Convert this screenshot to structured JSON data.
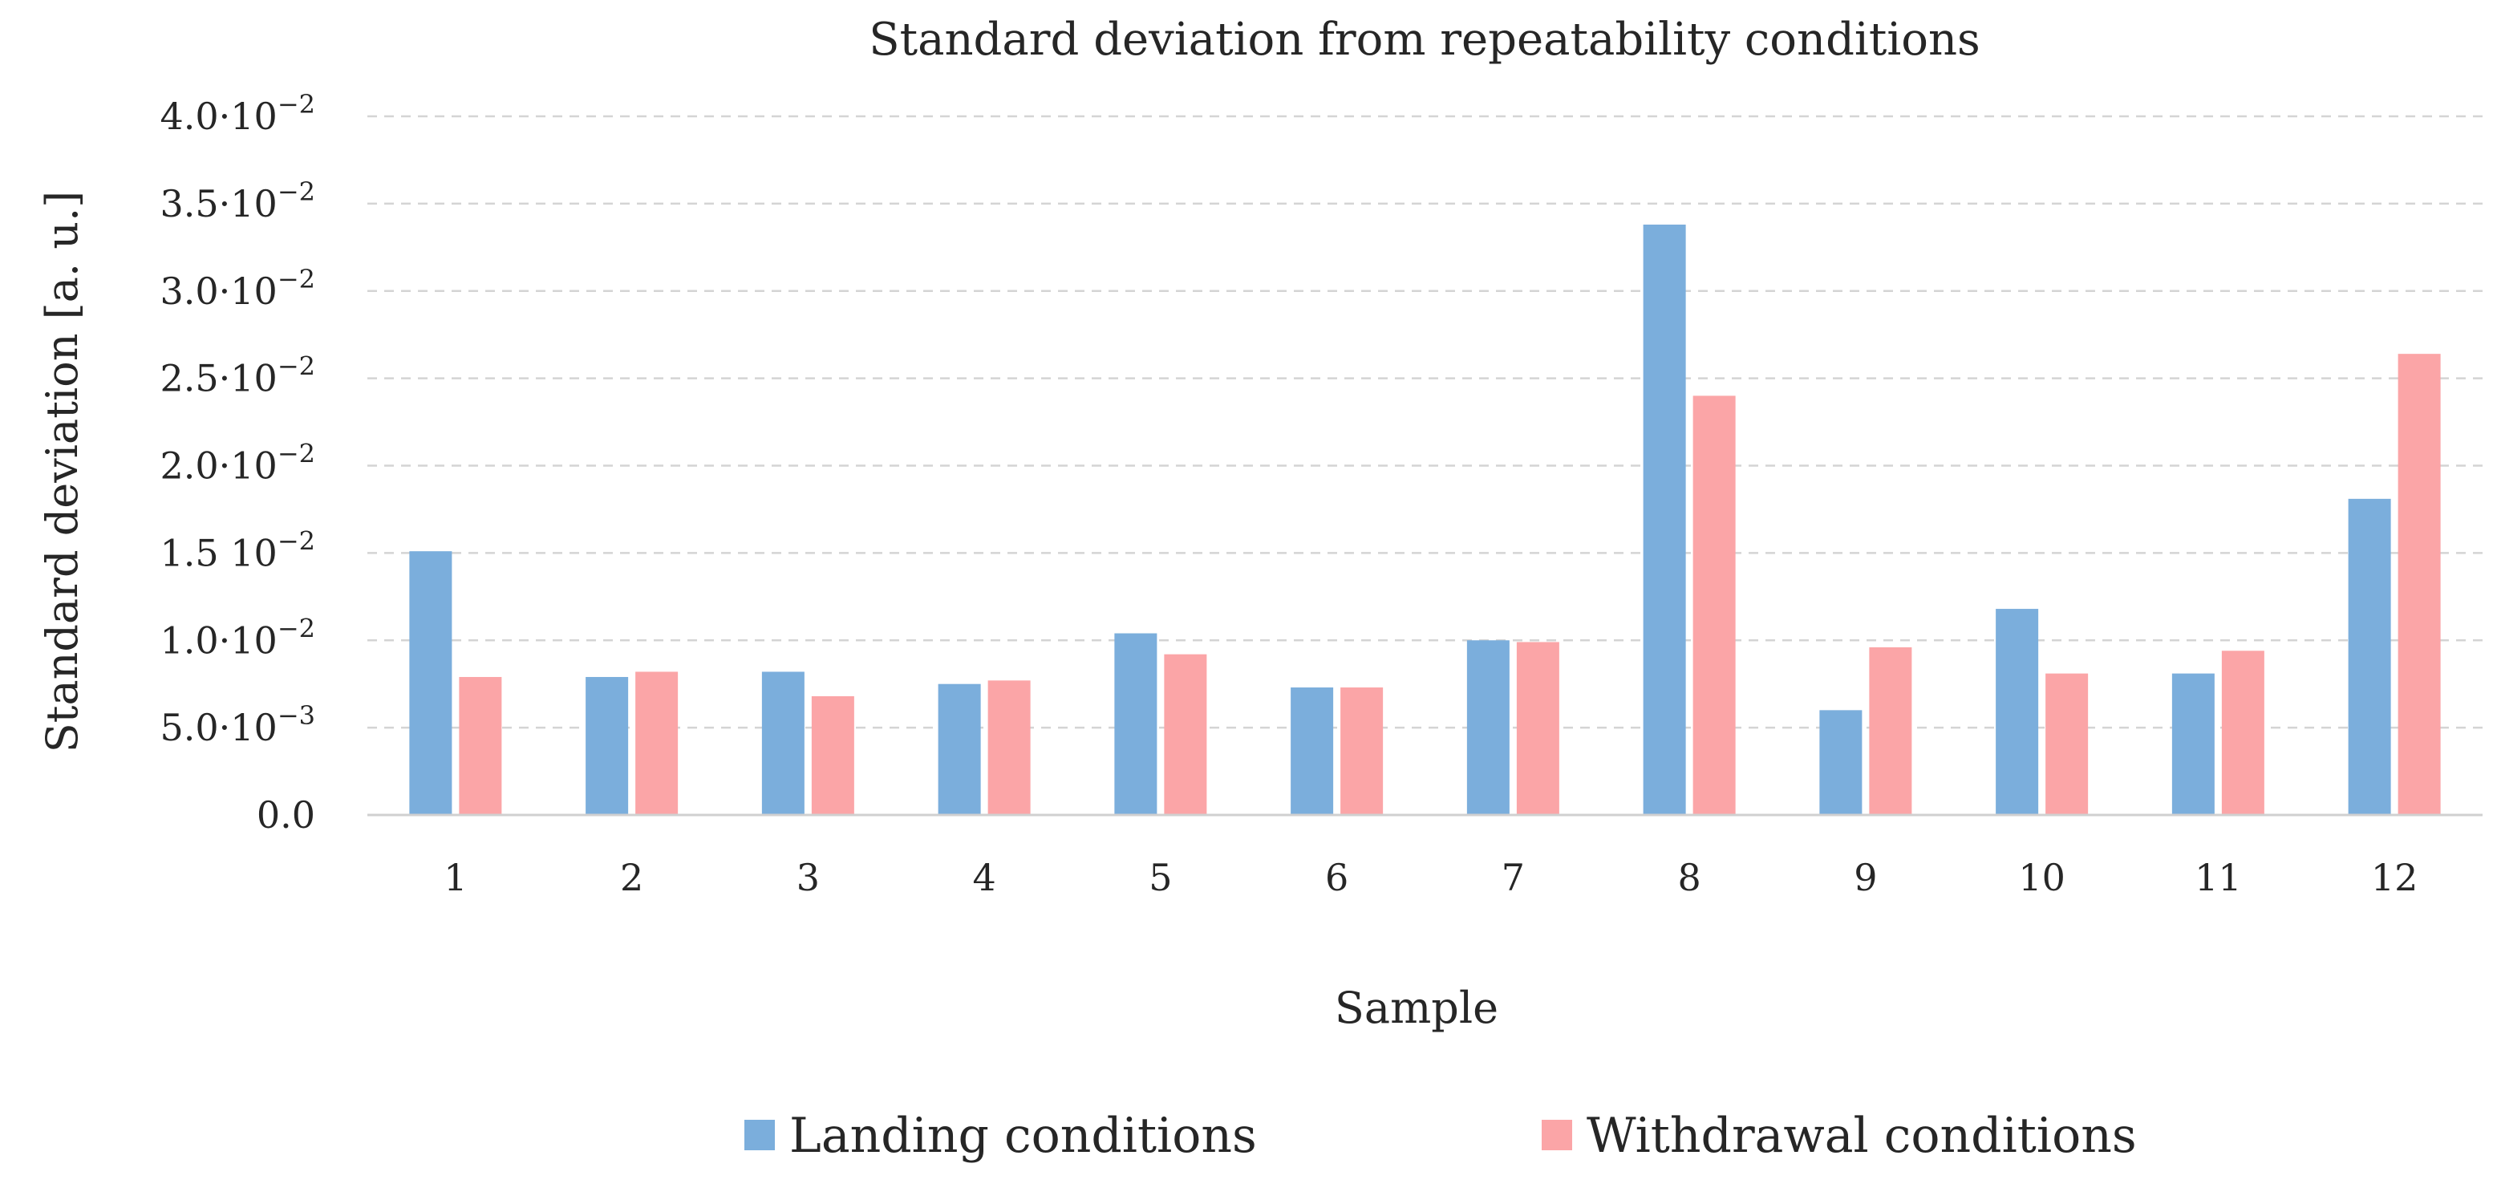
{
  "chart_data": {
    "type": "bar",
    "title": "Standard deviation from repeatability conditions",
    "xlabel": "Sample",
    "ylabel": "Standard deviation [a. u.]",
    "ylim": [
      0,
      0.04
    ],
    "grid": true,
    "legend_position": "bottom",
    "categories": [
      "1",
      "2",
      "3",
      "4",
      "5",
      "6",
      "7",
      "8",
      "9",
      "10",
      "11",
      "12"
    ],
    "y_ticks": [
      {
        "value": 0,
        "mantissa": "0.0",
        "exponent": ""
      },
      {
        "value": 0.005,
        "mantissa": "5.0·10",
        "exponent": "−3"
      },
      {
        "value": 0.01,
        "mantissa": "1.0·10",
        "exponent": "−2"
      },
      {
        "value": 0.015,
        "mantissa": "1.5 10",
        "exponent": "−2"
      },
      {
        "value": 0.02,
        "mantissa": "2.0·10",
        "exponent": "−2"
      },
      {
        "value": 0.025,
        "mantissa": "2.5·10",
        "exponent": "−2"
      },
      {
        "value": 0.03,
        "mantissa": "3.0·10",
        "exponent": "−2"
      },
      {
        "value": 0.035,
        "mantissa": "3.5·10",
        "exponent": "−2"
      },
      {
        "value": 0.04,
        "mantissa": "4.0·10",
        "exponent": "−2"
      }
    ],
    "series": [
      {
        "name": "Landing conditions",
        "color": "#7BAEDC",
        "values": [
          0.0151,
          0.0079,
          0.0082,
          0.0075,
          0.0104,
          0.0073,
          0.01,
          0.0338,
          0.006,
          0.0118,
          0.0081,
          0.0181
        ]
      },
      {
        "name": "Withdrawal conditions",
        "color": "#FBA5A7",
        "values": [
          0.0079,
          0.0082,
          0.0068,
          0.0077,
          0.0092,
          0.0073,
          0.0099,
          0.024,
          0.0096,
          0.0081,
          0.0094,
          0.0264
        ]
      }
    ]
  }
}
